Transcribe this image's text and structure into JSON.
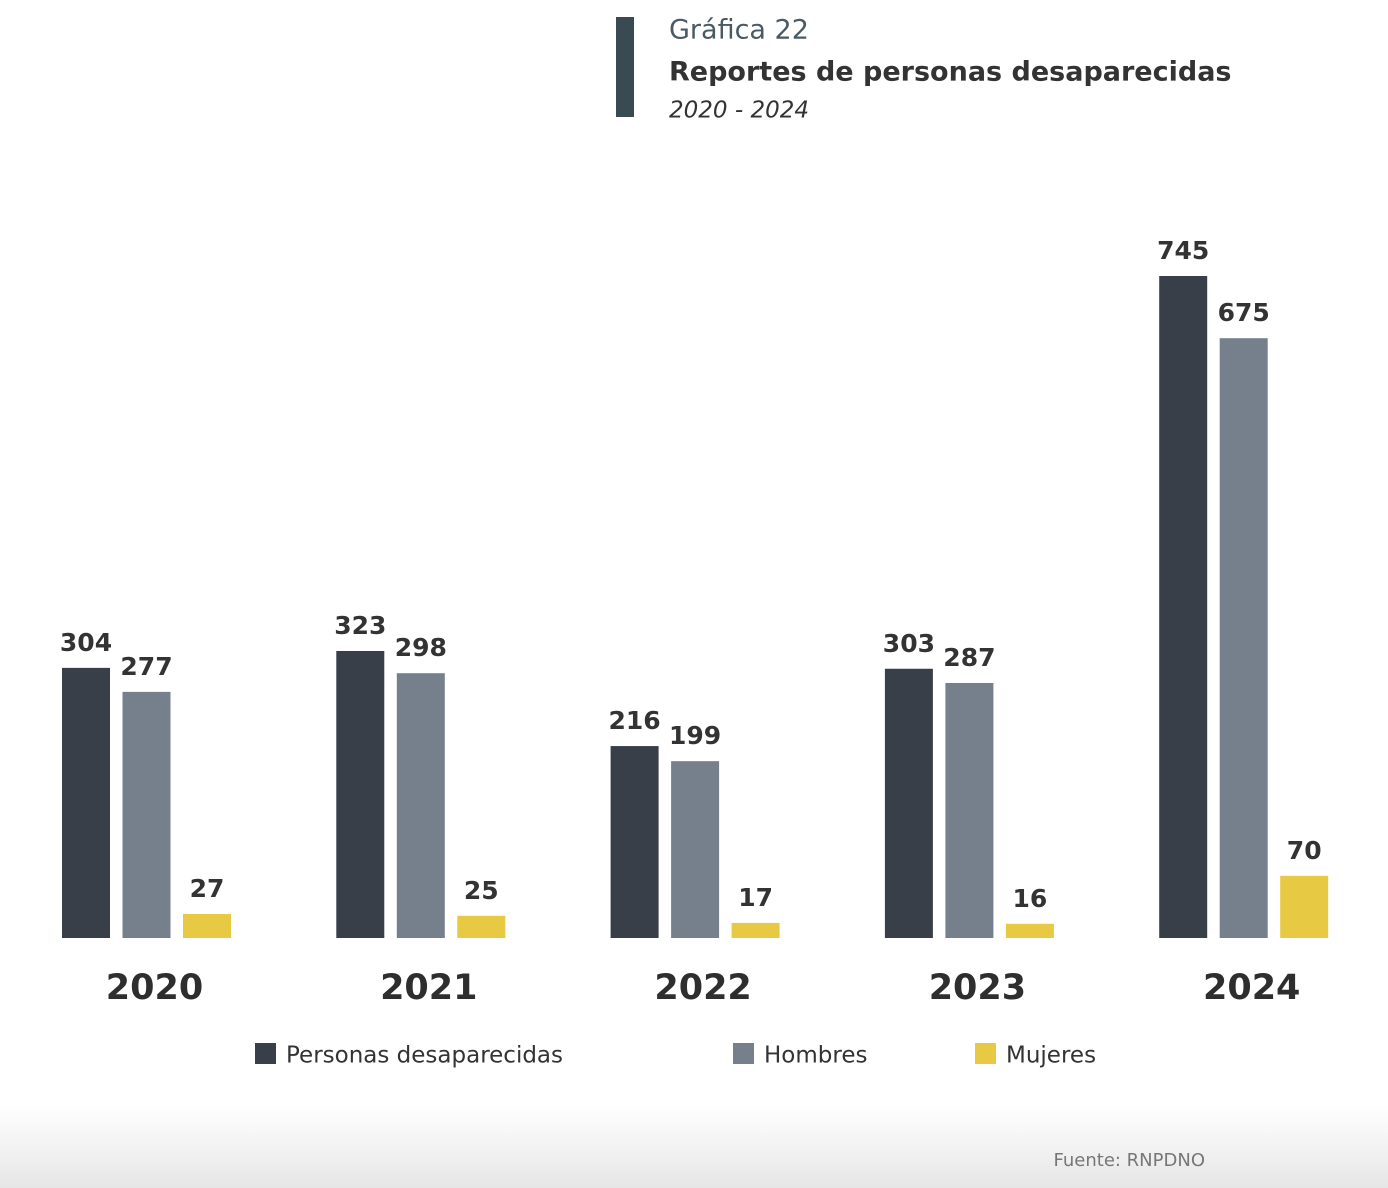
{
  "chart_data": {
    "type": "bar",
    "label": "Gráfica 22",
    "title": "Reportes de personas desaparecidas",
    "subtitle": "2020 - 2024",
    "source": "Fuente: RNPDNO",
    "categories": [
      "2020",
      "2021",
      "2022",
      "2023",
      "2024"
    ],
    "series": [
      {
        "name": "Personas desaparecidas",
        "color": "#393f48",
        "values": [
          304,
          323,
          216,
          303,
          745
        ]
      },
      {
        "name": "Hombres",
        "color": "#76808c",
        "values": [
          277,
          298,
          199,
          287,
          675
        ]
      },
      {
        "name": "Mujeres",
        "color": "#e8c944",
        "values": [
          27,
          25,
          17,
          16,
          70
        ]
      }
    ]
  }
}
